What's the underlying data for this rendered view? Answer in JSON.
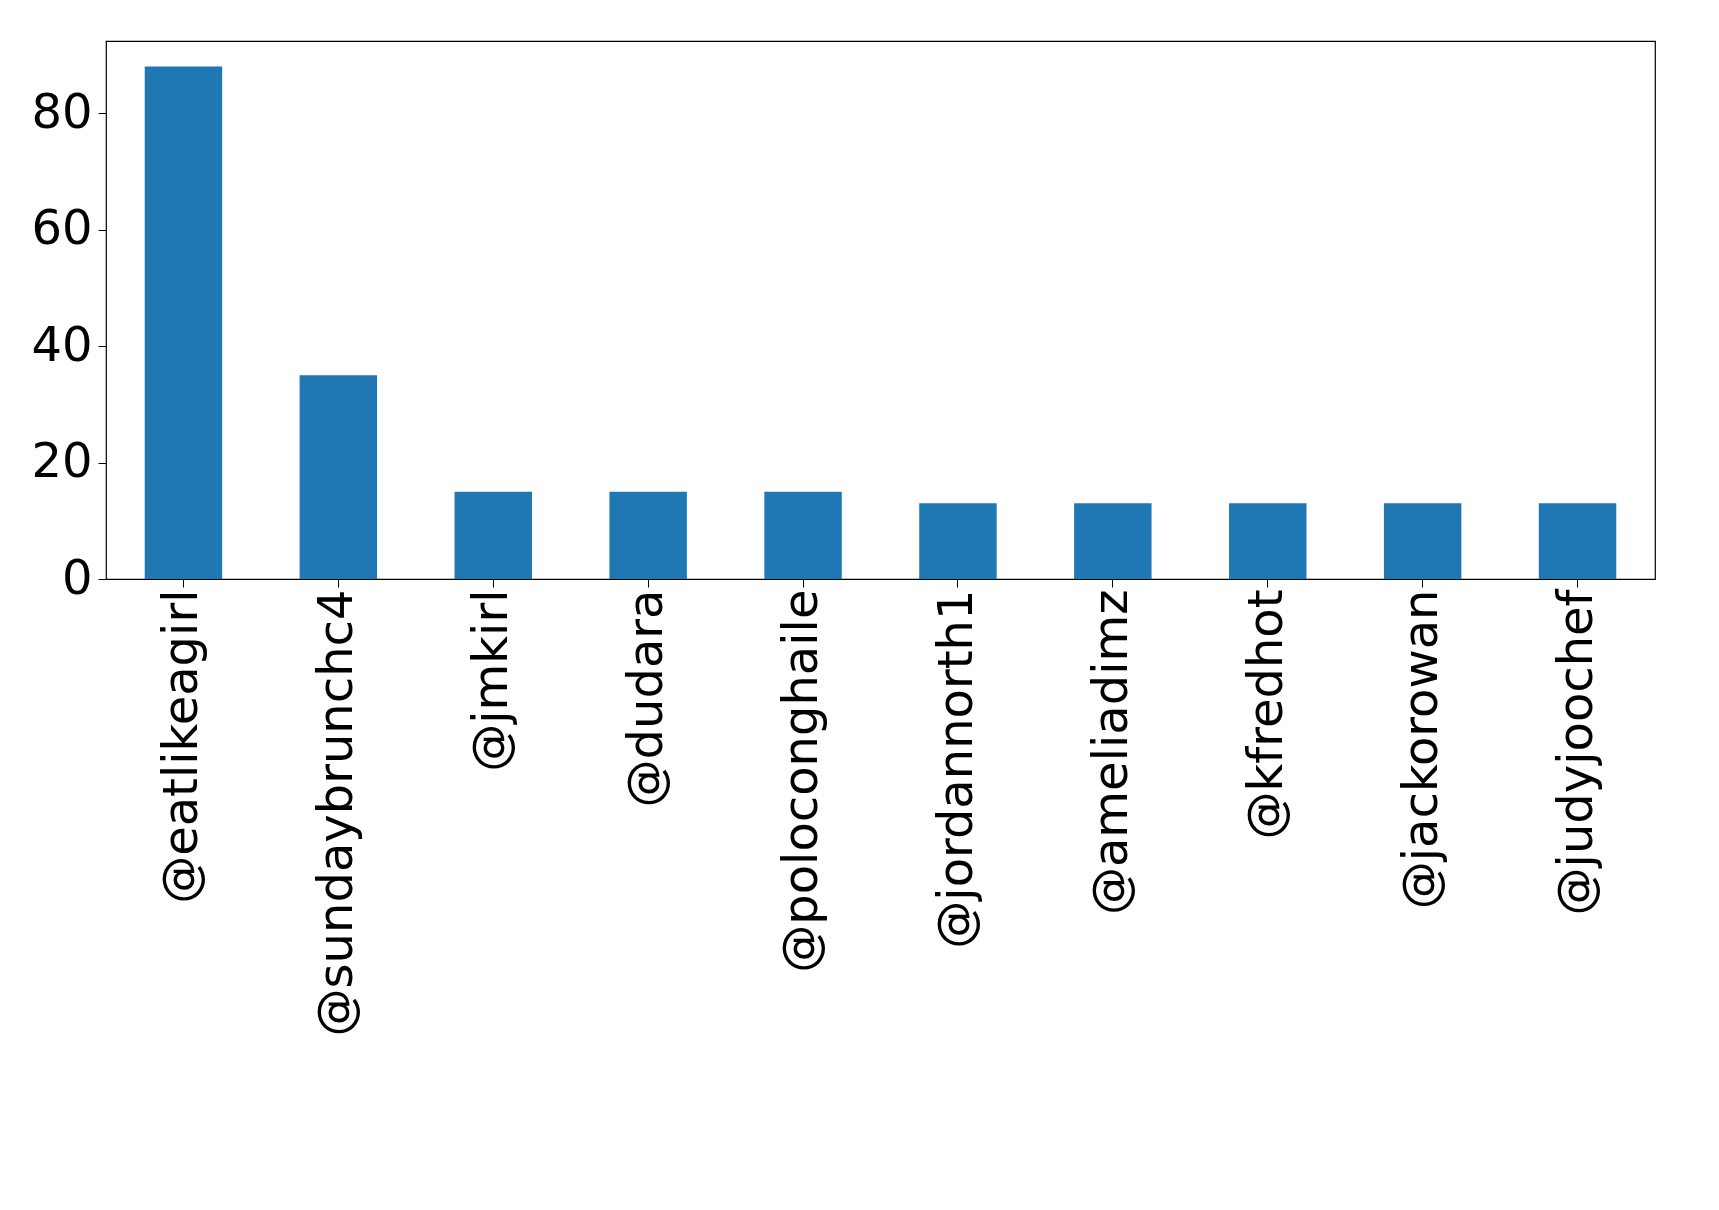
{
  "chart_data": {
    "type": "bar",
    "categories": [
      "@eatlikeagirl",
      "@sundaybrunchc4",
      "@jmkirl",
      "@dudara",
      "@poloconghaile",
      "@jordannorth1",
      "@ameliadimz",
      "@kfredhot",
      "@jackorowan",
      "@judyjoochef"
    ],
    "values": [
      88,
      35,
      15,
      15,
      15,
      13,
      13,
      13,
      13,
      13
    ],
    "color": "#1f77b4",
    "ylim": [
      0,
      92.4
    ],
    "yticks": [
      0,
      20,
      40,
      60,
      80
    ]
  }
}
